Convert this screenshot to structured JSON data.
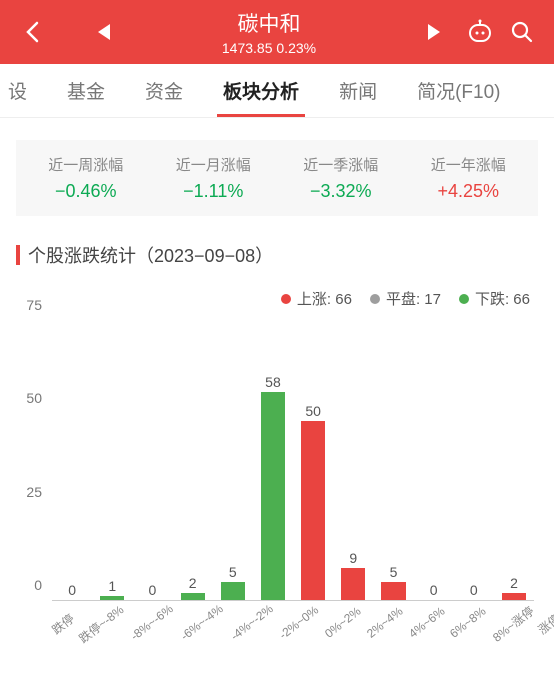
{
  "header": {
    "title": "碳中和",
    "price": "1473.85",
    "change": "0.23%",
    "bg_color": "#e94440"
  },
  "tabs": {
    "items": [
      "基金",
      "资金",
      "板块分析",
      "新闻",
      "简况(F10)"
    ],
    "leading_cut": "设",
    "active_index": 2
  },
  "perf": {
    "cells": [
      {
        "label": "近一周涨幅",
        "value": "−0.46%",
        "dir": "down"
      },
      {
        "label": "近一月涨幅",
        "value": "−1.11%",
        "dir": "down"
      },
      {
        "label": "近一季涨幅",
        "value": "−3.32%",
        "dir": "down"
      },
      {
        "label": "近一年涨幅",
        "value": "+4.25%",
        "dir": "up"
      }
    ]
  },
  "section": {
    "title": "个股涨跌统计（2023−09−08）"
  },
  "legend": {
    "items": [
      {
        "label": "上涨: 66",
        "color": "#e94440"
      },
      {
        "label": "平盘: 17",
        "color": "#9e9e9e"
      },
      {
        "label": "下跌: 66",
        "color": "#4caf50"
      }
    ]
  },
  "chart": {
    "type": "bar",
    "ylim": [
      0,
      75
    ],
    "yticks": [
      0,
      25,
      50,
      75
    ],
    "categories": [
      "跌停",
      "跌停~-8%",
      "-8%~-6%",
      "-6%~-4%",
      "-4%~-2%",
      "-2%~0%",
      "0%~2%",
      "2%~4%",
      "4%~6%",
      "6%~8%",
      "8%~涨停",
      "涨停"
    ],
    "values": [
      0,
      1,
      0,
      2,
      5,
      58,
      50,
      9,
      5,
      0,
      0,
      2
    ],
    "bar_colors": [
      "#4caf50",
      "#4caf50",
      "#4caf50",
      "#4caf50",
      "#4caf50",
      "#4caf50",
      "#e94440",
      "#e94440",
      "#e94440",
      "#e94440",
      "#e94440",
      "#e94440"
    ],
    "axis_color": "#cccccc",
    "label_color": "#888888",
    "value_label_color": "#555555",
    "tick_fontsize": 14,
    "xlabel_fontsize": 12,
    "bar_width": 0.6
  }
}
